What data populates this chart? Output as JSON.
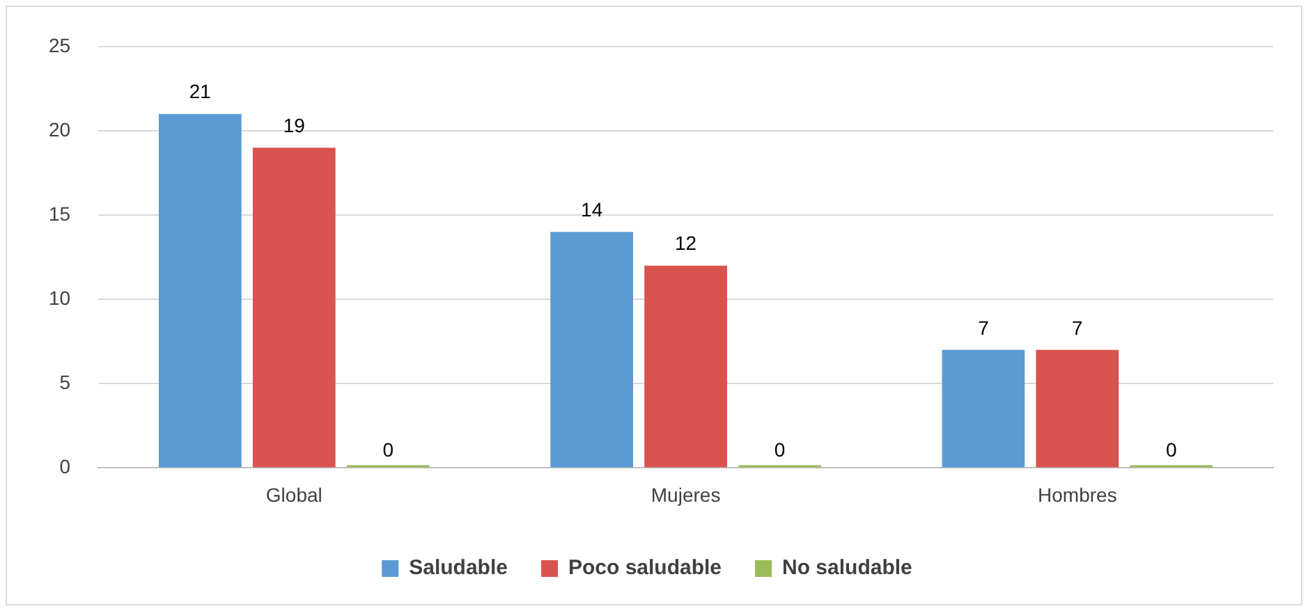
{
  "chart_data": {
    "type": "bar",
    "categories": [
      "Global",
      "Mujeres",
      "Hombres"
    ],
    "series": [
      {
        "name": "Saludable",
        "color": "#5b9bd5",
        "values": [
          21,
          14,
          7
        ]
      },
      {
        "name": "Poco saludable",
        "color": "#d9534f",
        "values": [
          19,
          12,
          7
        ]
      },
      {
        "name": "No saludable",
        "color": "#9bbb59",
        "values": [
          0,
          0,
          0
        ]
      }
    ],
    "ylim": [
      0,
      25
    ],
    "yticks": [
      0,
      5,
      10,
      15,
      20,
      25
    ],
    "grid": "y",
    "legend": "bottom",
    "data_labels": true
  }
}
